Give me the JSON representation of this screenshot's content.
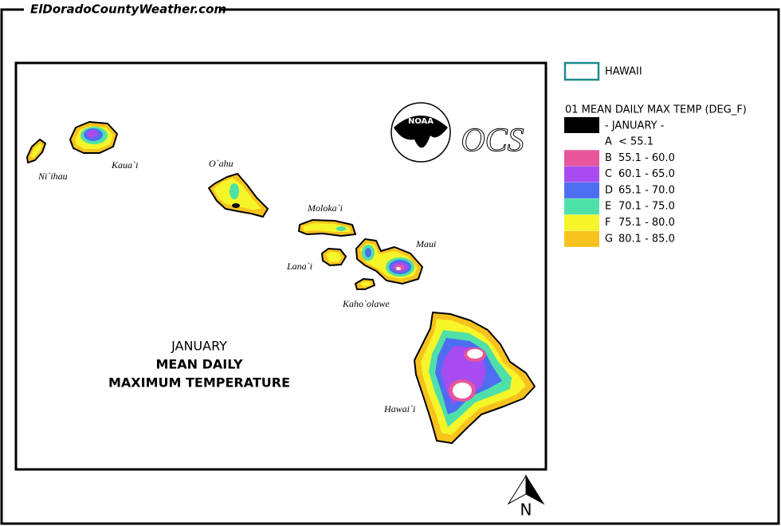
{
  "header": {
    "site": "ElDoradoCountyWeather.com"
  },
  "map": {
    "islands": [
      "Ni`ihau",
      "Kaua`i",
      "O`ahu",
      "Moloka`i",
      "Lana`i",
      "Maui",
      "Kaho`olawe",
      "Hawai`i"
    ],
    "caption": {
      "month": "JANUARY",
      "line1": "MEAN DAILY",
      "line2": "MAXIMUM TEMPERATURE"
    },
    "logos": {
      "noaa": "NOAA",
      "ocs": "OCS"
    },
    "north": "N"
  },
  "legend": {
    "boundary": "HAWAII",
    "title": "01 MEAN DAILY MAX TEMP (DEG_F)",
    "period": "- JANUARY -",
    "classes": [
      {
        "code": "A",
        "range": "< 55.1",
        "color": "#ffffff"
      },
      {
        "code": "B",
        "range": "55.1 - 60.0",
        "color": "#e8559a"
      },
      {
        "code": "C",
        "range": "60.1 - 65.0",
        "color": "#a64cf0"
      },
      {
        "code": "D",
        "range": "65.1 - 70.0",
        "color": "#4d6ef0"
      },
      {
        "code": "E",
        "range": "70.1 - 75.0",
        "color": "#4ee0a8"
      },
      {
        "code": "F",
        "range": "75.1 - 80.0",
        "color": "#f5f52a"
      },
      {
        "code": "G",
        "range": "80.1 - 85.0",
        "color": "#f7c21e"
      }
    ]
  }
}
